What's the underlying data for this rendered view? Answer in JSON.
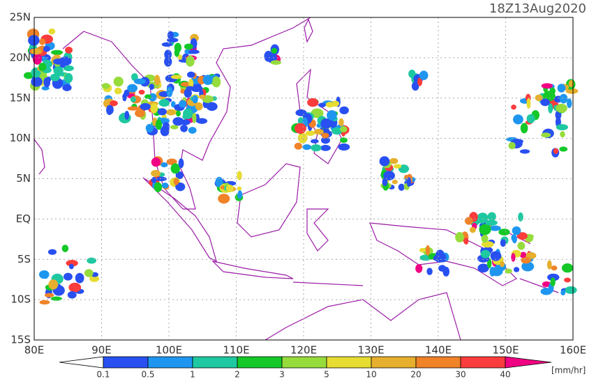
{
  "map": {
    "title": "18Z13Aug2020",
    "lat_labels": [
      "25N",
      "20N",
      "15N",
      "10N",
      "5N",
      "EQ",
      "5S",
      "10S",
      "15S"
    ],
    "lon_labels": [
      "80E",
      "90E",
      "100E",
      "110E",
      "120E",
      "130E",
      "140E",
      "150E",
      "160E"
    ],
    "colorbar": {
      "levels": [
        0.1,
        0.5,
        1,
        2,
        3,
        5,
        10,
        20,
        30,
        40
      ],
      "colors": [
        "#ffffff",
        "#2850f0",
        "#1e96f0",
        "#1ec8a0",
        "#14c828",
        "#96dc3c",
        "#e6dc32",
        "#e6af2d",
        "#f08228",
        "#fa3c3c",
        "#f00082"
      ],
      "unit": "[mm/hr]"
    }
  }
}
